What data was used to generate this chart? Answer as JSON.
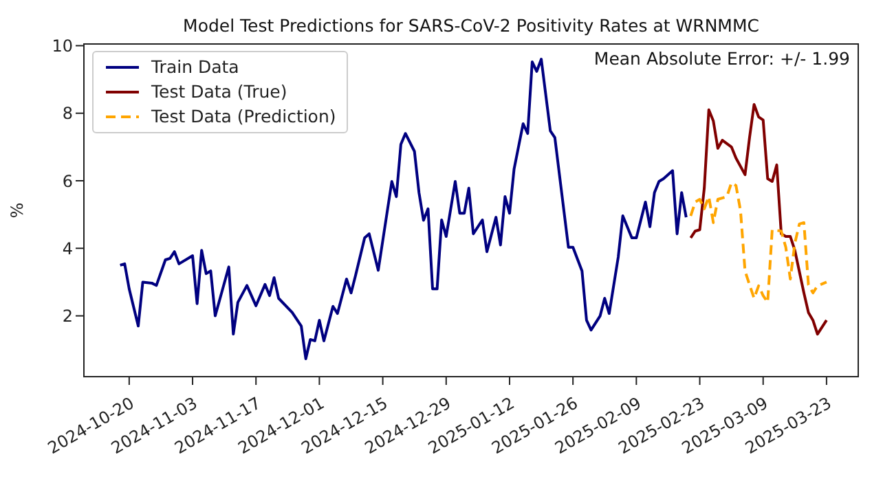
{
  "chart_data": {
    "type": "line",
    "title": "Model Test Predictions for SARS-CoV-2 Positivity Rates at WRNMMC",
    "ylabel": "%",
    "annotations": [
      "Mean Absolute Error: +/- 1.99"
    ],
    "legend": "top left",
    "xlim": [
      "2024-10-10",
      "2025-03-30"
    ],
    "xticks": [
      "2024-10-20",
      "2024-11-03",
      "2024-11-17",
      "2024-12-01",
      "2024-12-15",
      "2024-12-29",
      "2025-01-12",
      "2025-01-26",
      "2025-02-09",
      "2025-02-23",
      "2025-03-09",
      "2025-03-23"
    ],
    "ylim": [
      0.2,
      10.05
    ],
    "yticks": [
      2,
      4,
      6,
      8,
      10
    ],
    "series": [
      {
        "name": "Train Data",
        "color": "#000080",
        "x": [
          "2024-10-18",
          "2024-10-19",
          "2024-10-20",
          "2024-10-22",
          "2024-10-23",
          "2024-10-25",
          "2024-10-26",
          "2024-10-28",
          "2024-10-29",
          "2024-10-30",
          "2024-10-31",
          "2024-11-03",
          "2024-11-04",
          "2024-11-05",
          "2024-11-06",
          "2024-11-07",
          "2024-11-08",
          "2024-11-11",
          "2024-11-12",
          "2024-11-13",
          "2024-11-15",
          "2024-11-17",
          "2024-11-19",
          "2024-11-20",
          "2024-11-21",
          "2024-11-22",
          "2024-11-25",
          "2024-11-27",
          "2024-11-28",
          "2024-11-29",
          "2024-11-30",
          "2024-12-01",
          "2024-12-02",
          "2024-12-04",
          "2024-12-05",
          "2024-12-07",
          "2024-12-08",
          "2024-12-09",
          "2024-12-11",
          "2024-12-12",
          "2024-12-14",
          "2024-12-17",
          "2024-12-18",
          "2024-12-19",
          "2024-12-20",
          "2024-12-22",
          "2024-12-23",
          "2024-12-24",
          "2024-12-25",
          "2024-12-26",
          "2024-12-27",
          "2024-12-28",
          "2024-12-29",
          "2024-12-31",
          "2025-01-01",
          "2025-01-02",
          "2025-01-03",
          "2025-01-04",
          "2025-01-06",
          "2025-01-07",
          "2025-01-09",
          "2025-01-10",
          "2025-01-11",
          "2025-01-12",
          "2025-01-13",
          "2025-01-15",
          "2025-01-16",
          "2025-01-17",
          "2025-01-18",
          "2025-01-19",
          "2025-01-21",
          "2025-01-22",
          "2025-01-25",
          "2025-01-26",
          "2025-01-28",
          "2025-01-29",
          "2025-01-30",
          "2025-02-01",
          "2025-02-02",
          "2025-02-03",
          "2025-02-05",
          "2025-02-06",
          "2025-02-08",
          "2025-02-09",
          "2025-02-11",
          "2025-02-12",
          "2025-02-13",
          "2025-02-14",
          "2025-02-15",
          "2025-02-17",
          "2025-02-18",
          "2025-02-19",
          "2025-02-20"
        ],
        "values": [
          3.5,
          3.54,
          2.8,
          1.7,
          3.0,
          2.97,
          2.9,
          3.66,
          3.7,
          3.9,
          3.54,
          3.78,
          2.36,
          3.94,
          3.25,
          3.33,
          2.0,
          3.45,
          1.46,
          2.4,
          2.9,
          2.3,
          2.93,
          2.6,
          3.13,
          2.52,
          2.1,
          1.7,
          0.73,
          1.3,
          1.26,
          1.87,
          1.26,
          2.28,
          2.07,
          3.09,
          2.68,
          3.2,
          4.31,
          4.43,
          3.35,
          5.98,
          5.53,
          7.08,
          7.4,
          6.87,
          5.65,
          4.83,
          5.17,
          2.8,
          2.8,
          4.84,
          4.35,
          5.98,
          5.04,
          5.04,
          5.78,
          4.43,
          4.84,
          3.9,
          4.92,
          4.1,
          5.53,
          5.04,
          6.35,
          7.69,
          7.4,
          9.52,
          9.24,
          9.6,
          7.48,
          7.28,
          4.03,
          4.03,
          3.33,
          1.87,
          1.58,
          2.0,
          2.52,
          2.07,
          3.74,
          4.96,
          4.31,
          4.31,
          5.37,
          4.64,
          5.65,
          5.98,
          6.06,
          6.3,
          4.43,
          5.65,
          4.92
        ]
      },
      {
        "name": "Test Data (True)",
        "color": "#800000",
        "x": [
          "2025-02-21",
          "2025-02-22",
          "2025-02-23",
          "2025-02-24",
          "2025-02-25",
          "2025-02-26",
          "2025-02-27",
          "2025-02-28",
          "2025-03-02",
          "2025-03-03",
          "2025-03-05",
          "2025-03-06",
          "2025-03-07",
          "2025-03-08",
          "2025-03-09",
          "2025-03-10",
          "2025-03-11",
          "2025-03-12",
          "2025-03-13",
          "2025-03-14",
          "2025-03-15",
          "2025-03-16",
          "2025-03-18",
          "2025-03-19",
          "2025-03-20",
          "2025-03-21",
          "2025-03-23"
        ],
        "values": [
          4.31,
          4.51,
          4.55,
          5.78,
          8.1,
          7.77,
          6.96,
          7.2,
          7.0,
          6.67,
          6.18,
          7.28,
          8.26,
          7.89,
          7.8,
          6.06,
          5.98,
          6.47,
          4.43,
          4.35,
          4.35,
          3.94,
          2.68,
          2.1,
          1.87,
          1.46,
          1.87
        ]
      },
      {
        "name": "Test Data (Prediction)",
        "color": "#ffa500",
        "line_style": "dashed",
        "x": [
          "2025-02-21",
          "2025-02-22",
          "2025-02-23",
          "2025-02-24",
          "2025-02-25",
          "2025-02-26",
          "2025-02-27",
          "2025-03-01",
          "2025-03-02",
          "2025-03-03",
          "2025-03-04",
          "2025-03-05",
          "2025-03-06",
          "2025-03-07",
          "2025-03-08",
          "2025-03-09",
          "2025-03-10",
          "2025-03-11",
          "2025-03-13",
          "2025-03-14",
          "2025-03-15",
          "2025-03-16",
          "2025-03-17",
          "2025-03-18",
          "2025-03-19",
          "2025-03-20",
          "2025-03-21",
          "2025-03-23"
        ],
        "values": [
          4.96,
          5.37,
          5.45,
          5.17,
          5.53,
          4.76,
          5.45,
          5.53,
          5.94,
          5.86,
          5.12,
          3.33,
          2.92,
          2.52,
          2.89,
          2.6,
          2.4,
          4.55,
          4.51,
          4.03,
          3.09,
          4.15,
          4.72,
          4.76,
          2.92,
          2.68,
          2.89,
          3.0
        ]
      }
    ]
  }
}
